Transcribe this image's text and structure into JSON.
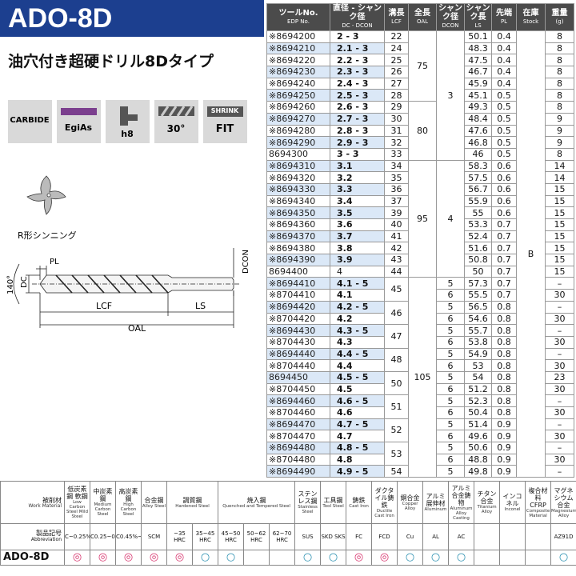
{
  "header": {
    "title": "ADO-8D",
    "subtitle": "油穴付き超硬ドリル8Dタイプ"
  },
  "icons": {
    "carbide": "CARBIDE",
    "coating": "EgiAs",
    "tolerance": "h8",
    "helix": "30°",
    "shrink_top": "SHRINK",
    "shrink_bottom": "FIT"
  },
  "diagram": {
    "thinning": "R形シンニング",
    "pl": "PL",
    "dc": "DC",
    "angle": "140°",
    "dcon": "DCON",
    "lcf": "LCF",
    "ls": "LS",
    "oal": "OAL"
  },
  "spec_table": {
    "headers": [
      {
        "ja": "ツールNo.",
        "en": "EDP No."
      },
      {
        "ja": "直径 - シャンク径",
        "en": "DC - DCON"
      },
      {
        "ja": "溝長",
        "en": "LCF"
      },
      {
        "ja": "全長",
        "en": "OAL"
      },
      {
        "ja": "シャンク径",
        "en": "DCON"
      },
      {
        "ja": "シャンク長",
        "en": "LS"
      },
      {
        "ja": "先端",
        "en": "PL"
      },
      {
        "ja": "在庫",
        "en": "Stock"
      },
      {
        "ja": "重量",
        "en": "(g)"
      }
    ],
    "rows": [
      [
        "※8694200",
        "2 - 3",
        22,
        75,
        3,
        50.1,
        0.4,
        "B",
        8
      ],
      [
        "※8694210",
        "2.1 - 3",
        24,
        null,
        null,
        48.3,
        0.4,
        null,
        8
      ],
      [
        "※8694220",
        "2.2 - 3",
        25,
        null,
        null,
        47.5,
        0.4,
        null,
        8
      ],
      [
        "※8694230",
        "2.3 - 3",
        26,
        null,
        null,
        46.7,
        0.4,
        null,
        8
      ],
      [
        "※8694240",
        "2.4 - 3",
        27,
        null,
        null,
        45.9,
        0.4,
        null,
        8
      ],
      [
        "※8694250",
        "2.5 - 3",
        28,
        null,
        null,
        45.1,
        0.5,
        null,
        8
      ],
      [
        "※8694260",
        "2.6 - 3",
        29,
        80,
        null,
        49.3,
        0.5,
        null,
        8
      ],
      [
        "※8694270",
        "2.7 - 3",
        30,
        null,
        null,
        48.4,
        0.5,
        null,
        9
      ],
      [
        "※8694280",
        "2.8 - 3",
        31,
        null,
        null,
        47.6,
        0.5,
        null,
        9
      ],
      [
        "※8694290",
        "2.9 - 3",
        32,
        null,
        null,
        46.8,
        0.5,
        null,
        9
      ],
      [
        "8694300",
        "3 - 3",
        33,
        null,
        null,
        46,
        0.5,
        null,
        8
      ],
      [
        "※8694310",
        "3.1",
        34,
        95,
        4,
        58.3,
        0.6,
        null,
        14
      ],
      [
        "※8694320",
        "3.2",
        35,
        null,
        null,
        57.5,
        0.6,
        null,
        14
      ],
      [
        "※8694330",
        "3.3",
        36,
        null,
        null,
        56.7,
        0.6,
        null,
        15
      ],
      [
        "※8694340",
        "3.4",
        37,
        null,
        null,
        55.9,
        0.6,
        null,
        15
      ],
      [
        "※8694350",
        "3.5",
        39,
        null,
        null,
        55,
        0.6,
        null,
        15
      ],
      [
        "※8694360",
        "3.6",
        40,
        null,
        null,
        53.3,
        0.7,
        null,
        15
      ],
      [
        "※8694370",
        "3.7",
        41,
        null,
        null,
        52.4,
        0.7,
        null,
        15
      ],
      [
        "※8694380",
        "3.8",
        42,
        null,
        null,
        51.6,
        0.7,
        null,
        15
      ],
      [
        "※8694390",
        "3.9",
        43,
        null,
        null,
        50.8,
        0.7,
        null,
        15
      ],
      [
        "8694400",
        "4",
        44,
        null,
        null,
        50,
        0.7,
        null,
        15
      ],
      [
        "※8694410",
        "4.1 - 5",
        45,
        105,
        5,
        57.3,
        0.7,
        null,
        "–"
      ],
      [
        "※8704410",
        "4.1",
        null,
        null,
        6,
        55.5,
        0.7,
        null,
        30
      ],
      [
        "※8694420",
        "4.2 - 5",
        46,
        null,
        5,
        56.5,
        0.8,
        null,
        "–"
      ],
      [
        "※8704420",
        "4.2",
        null,
        null,
        6,
        54.6,
        0.8,
        null,
        30
      ],
      [
        "※8694430",
        "4.3 - 5",
        47,
        null,
        5,
        55.7,
        0.8,
        null,
        "–"
      ],
      [
        "※8704430",
        "4.3",
        null,
        null,
        6,
        53.8,
        0.8,
        null,
        30
      ],
      [
        "※8694440",
        "4.4 - 5",
        48,
        null,
        5,
        54.9,
        0.8,
        null,
        "–"
      ],
      [
        "※8704440",
        "4.4",
        null,
        null,
        6,
        53,
        0.8,
        null,
        30
      ],
      [
        "8694450",
        "4.5 - 5",
        50,
        null,
        5,
        54,
        0.8,
        null,
        23
      ],
      [
        "※8704450",
        "4.5",
        null,
        null,
        6,
        51.2,
        0.8,
        null,
        30
      ],
      [
        "※8694460",
        "4.6 - 5",
        51,
        null,
        5,
        52.3,
        0.8,
        null,
        "–"
      ],
      [
        "※8704460",
        "4.6",
        null,
        null,
        6,
        50.4,
        0.8,
        null,
        30
      ],
      [
        "※8694470",
        "4.7 - 5",
        52,
        null,
        5,
        51.4,
        0.9,
        null,
        "–"
      ],
      [
        "※8704470",
        "4.7",
        null,
        null,
        6,
        49.6,
        0.9,
        null,
        30
      ],
      [
        "※8694480",
        "4.8 - 5",
        53,
        null,
        5,
        50.6,
        0.9,
        null,
        "–"
      ],
      [
        "※8704480",
        "4.8",
        null,
        null,
        6,
        48.8,
        0.9,
        null,
        30
      ],
      [
        "※8694490",
        "4.9 - 5",
        54,
        null,
        5,
        49.8,
        0.9,
        null,
        "–"
      ]
    ]
  },
  "materials": {
    "label_ja": "被削材",
    "label_en": "Work Material",
    "abbr_ja": "製品記号",
    "abbr_en": "Abbreviation",
    "product": "ADO-8D",
    "groups": [
      {
        "ja": "低炭素鋼 軟鋼",
        "en": "Low Carbon Steel Mild Steel",
        "cols": [
          {
            "code": "C~0.25%",
            "rating": "◎"
          }
        ]
      },
      {
        "ja": "中炭素鋼",
        "en": "Medium Carbon Steel",
        "cols": [
          {
            "code": "C0.25~0.45%",
            "rating": "◎"
          }
        ]
      },
      {
        "ja": "高炭素鋼",
        "en": "High Carbon Steel",
        "cols": [
          {
            "code": "C0.45%~",
            "rating": "◎"
          }
        ]
      },
      {
        "ja": "合金鋼",
        "en": "Alloy Steel",
        "cols": [
          {
            "code": "SCM",
            "rating": "◎"
          }
        ]
      },
      {
        "ja": "調質鋼",
        "en": "Hardened Steel",
        "cols": [
          {
            "code": "~35 HRC",
            "rating": "◎"
          },
          {
            "code": "35~45 HRC",
            "rating": "○"
          }
        ]
      },
      {
        "ja": "焼入鋼",
        "en": "Quenched and Tempered Steel",
        "cols": [
          {
            "code": "45~50 HRC",
            "rating": "○"
          },
          {
            "code": "50~62 HRC",
            "rating": null
          },
          {
            "code": "62~70 HRC",
            "rating": null
          }
        ]
      },
      {
        "ja": "ステンレス鋼",
        "en": "Stainless Steel",
        "cols": [
          {
            "code": "SUS",
            "rating": "○"
          }
        ]
      },
      {
        "ja": "工具鋼",
        "en": "Tool Steel",
        "cols": [
          {
            "code": "SKD SKS",
            "rating": "○"
          }
        ]
      },
      {
        "ja": "鋳鉄",
        "en": "Cast Iron",
        "cols": [
          {
            "code": "FC",
            "rating": "◎"
          }
        ]
      },
      {
        "ja": "ダクタイル鋳鉄",
        "en": "Ductile Cast Iron",
        "cols": [
          {
            "code": "FCD",
            "rating": "◎"
          }
        ]
      },
      {
        "ja": "銅合金",
        "en": "Copper Alloy",
        "cols": [
          {
            "code": "Cu",
            "rating": "○"
          }
        ]
      },
      {
        "ja": "アルミ展伸材",
        "en": "Aluminum",
        "cols": [
          {
            "code": "AL",
            "rating": "○"
          }
        ]
      },
      {
        "ja": "アルミ合金鋳物",
        "en": "Aluminum Alloy Casting",
        "cols": [
          {
            "code": "AC",
            "rating": "○"
          }
        ]
      },
      {
        "ja": "チタン合金",
        "en": "Titanium Alloy",
        "cols": [
          {
            "code": null,
            "rating": null
          }
        ]
      },
      {
        "ja": "インコネル",
        "en": "Inconel",
        "cols": [
          {
            "code": null,
            "rating": null
          }
        ]
      },
      {
        "ja": "複合材料 CFRP",
        "en": "Composite Material",
        "cols": [
          {
            "code": null,
            "rating": null
          }
        ]
      },
      {
        "ja": "マグネシウム合金",
        "en": "Magnesium Alloy",
        "cols": [
          {
            "code": "AZ91D",
            "rating": "○"
          }
        ]
      }
    ]
  }
}
